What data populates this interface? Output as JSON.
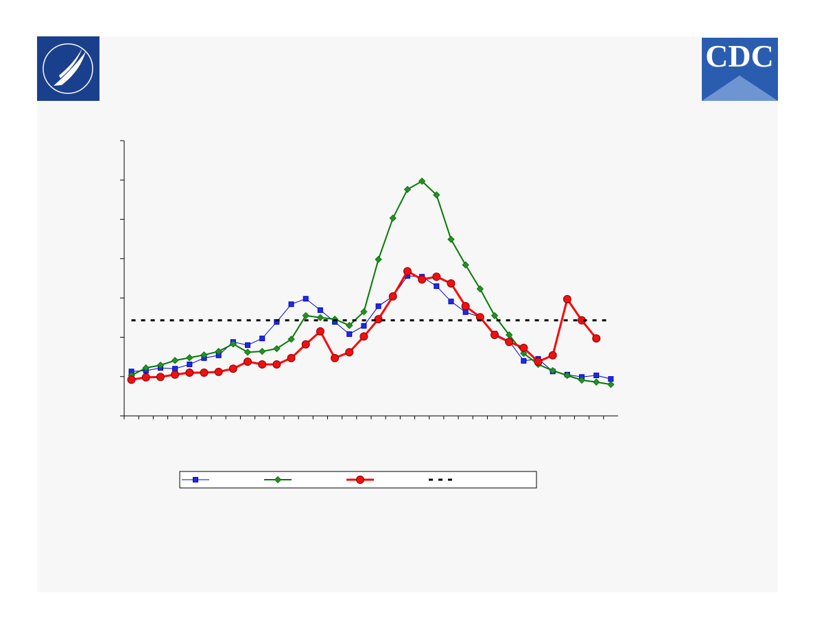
{
  "logo_text": "CDC",
  "chart_data": {
    "type": "line",
    "categories": [
      null,
      null,
      null,
      null,
      null,
      null,
      null,
      null,
      null,
      null,
      null,
      null,
      null,
      null,
      null,
      null,
      null,
      null,
      null,
      null,
      null,
      null,
      null,
      null,
      null,
      null,
      null,
      null,
      null,
      null,
      null,
      null,
      null,
      null
    ],
    "ylim": [
      0,
      7
    ],
    "yticks": [
      0,
      1,
      2,
      3,
      4,
      5,
      6,
      7
    ],
    "grid": false,
    "series": [
      {
        "color": "#0000cc",
        "marker": "square",
        "marker_fill": "#1e2ed9",
        "line_width": 1,
        "dashed": false,
        "values": [
          1.13,
          1.15,
          1.22,
          1.2,
          1.31,
          1.47,
          1.54,
          1.88,
          1.8,
          1.97,
          2.39,
          2.84,
          2.98,
          2.69,
          2.39,
          2.08,
          2.29,
          2.79,
          3.04,
          3.56,
          3.54,
          3.3,
          2.91,
          2.64,
          2.51,
          2.09,
          1.9,
          1.4,
          1.45,
          1.13,
          1.05,
          0.99,
          1.03,
          0.94
        ]
      },
      {
        "color": "#007a00",
        "marker": "diamond",
        "marker_fill": "#2e8b2e",
        "line_width": 2,
        "dashed": false,
        "values": [
          1.03,
          1.22,
          1.29,
          1.41,
          1.48,
          1.55,
          1.64,
          1.83,
          1.62,
          1.64,
          1.71,
          1.95,
          2.55,
          2.5,
          2.46,
          2.3,
          2.65,
          3.98,
          5.03,
          5.76,
          5.97,
          5.62,
          4.49,
          3.84,
          3.23,
          2.55,
          2.06,
          1.59,
          1.31,
          1.15,
          1.03,
          0.91,
          0.86,
          0.8
        ]
      },
      {
        "color": "#ff0000",
        "marker": "circle",
        "marker_fill": "#ee1111",
        "line_width": 3,
        "dashed": false,
        "values": [
          0.92,
          0.98,
          0.99,
          1.05,
          1.1,
          1.1,
          1.12,
          1.2,
          1.38,
          1.31,
          1.31,
          1.47,
          1.82,
          2.15,
          1.47,
          1.62,
          2.02,
          2.46,
          3.04,
          3.68,
          3.47,
          3.54,
          3.37,
          2.79,
          2.51,
          2.06,
          1.88,
          1.73,
          1.38,
          1.54,
          2.97,
          2.43,
          1.97,
          null
        ]
      },
      {
        "color": "#000000",
        "marker": "none",
        "line_width": 3,
        "dashed": true,
        "values": [
          2.43,
          2.43,
          2.43,
          2.43,
          2.43,
          2.43,
          2.43,
          2.43,
          2.43,
          2.43,
          2.43,
          2.43,
          2.43,
          2.43,
          2.43,
          2.43,
          2.43,
          2.43,
          2.43,
          2.43,
          2.43,
          2.43,
          2.43,
          2.43,
          2.43,
          2.43,
          2.43,
          2.43,
          2.43,
          2.43,
          2.43,
          2.43,
          2.43,
          2.43
        ]
      }
    ]
  }
}
